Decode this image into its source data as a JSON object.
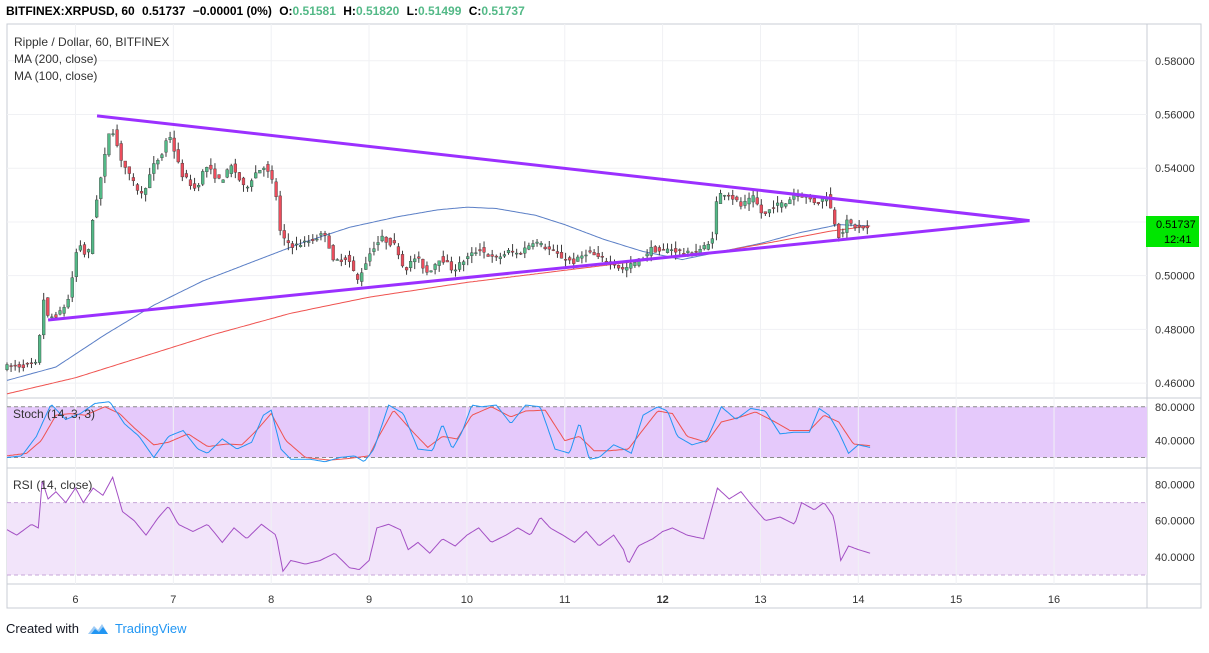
{
  "header": {
    "symbol": "BITFINEX:XRPUSD, 60",
    "last": "0.51737",
    "change": "−0.00001 (0%)",
    "o_label": "O:",
    "o_value": "0.51581",
    "h_label": "H:",
    "h_value": "0.51820",
    "l_label": "L:",
    "l_value": "0.51499",
    "c_label": "C:",
    "c_value": "0.51737"
  },
  "legend": {
    "title": "Ripple / Dollar, 60, BITFINEX",
    "ma200": "MA (200, close)",
    "ma100": "MA (100, close)"
  },
  "price_badge": {
    "value": "0.51737",
    "time": "12:41"
  },
  "footer": {
    "created_with": "Created with",
    "brand": "TradingView"
  },
  "colors": {
    "up": "#53b987",
    "down": "#eb4d5c",
    "ma100": "#5b7fc6",
    "ma200": "#ef5350",
    "trendline": "#9b30ff",
    "stoch_k": "#2196f3",
    "stoch_d": "#ef5350",
    "stoch_band": "#e5c9fb",
    "rsi_line": "#a34fc4",
    "rsi_band": "#f2e4fa",
    "badge_bg": "#00e600"
  },
  "chart_data": {
    "type": "candlestick",
    "title": "Ripple / Dollar, 60, BITFINEX",
    "x_ticks": [
      "6",
      "7",
      "8",
      "9",
      "10",
      "11",
      "12",
      "13",
      "14",
      "15",
      "16"
    ],
    "x_tick_days": [
      6,
      7,
      8,
      9,
      10,
      11,
      12,
      13,
      14,
      15,
      16
    ],
    "x_range_days": [
      5.3,
      16.95
    ],
    "price_axis": {
      "ticks": [
        "0.58000",
        "0.56000",
        "0.54000",
        "0.52000",
        "0.50000",
        "0.48000",
        "0.46000"
      ],
      "tick_values": [
        0.58,
        0.56,
        0.54,
        0.52,
        0.5,
        0.48,
        0.46
      ],
      "ylim": [
        0.4552,
        0.5937
      ]
    },
    "price_anchors": [
      [
        5.3,
        0.466
      ],
      [
        5.62,
        0.467
      ],
      [
        5.66,
        0.48
      ],
      [
        5.68,
        0.494
      ],
      [
        5.74,
        0.484
      ],
      [
        5.86,
        0.486
      ],
      [
        5.96,
        0.492
      ],
      [
        6.02,
        0.508
      ],
      [
        6.08,
        0.512
      ],
      [
        6.14,
        0.505
      ],
      [
        6.2,
        0.522
      ],
      [
        6.3,
        0.54
      ],
      [
        6.38,
        0.557
      ],
      [
        6.48,
        0.544
      ],
      [
        6.6,
        0.535
      ],
      [
        6.7,
        0.53
      ],
      [
        6.82,
        0.541
      ],
      [
        6.92,
        0.546
      ],
      [
        6.97,
        0.554
      ],
      [
        7.1,
        0.538
      ],
      [
        7.25,
        0.532
      ],
      [
        7.35,
        0.541
      ],
      [
        7.5,
        0.535
      ],
      [
        7.62,
        0.541
      ],
      [
        7.75,
        0.532
      ],
      [
        7.85,
        0.538
      ],
      [
        7.95,
        0.541
      ],
      [
        8.06,
        0.533
      ],
      [
        8.12,
        0.514
      ],
      [
        8.25,
        0.511
      ],
      [
        8.42,
        0.513
      ],
      [
        8.58,
        0.516
      ],
      [
        8.65,
        0.505
      ],
      [
        8.8,
        0.507
      ],
      [
        8.9,
        0.498
      ],
      [
        9.05,
        0.51
      ],
      [
        9.15,
        0.514
      ],
      [
        9.3,
        0.511
      ],
      [
        9.38,
        0.502
      ],
      [
        9.5,
        0.507
      ],
      [
        9.62,
        0.501
      ],
      [
        9.75,
        0.507
      ],
      [
        9.88,
        0.502
      ],
      [
        10.0,
        0.506
      ],
      [
        10.15,
        0.51
      ],
      [
        10.3,
        0.506
      ],
      [
        10.45,
        0.509
      ],
      [
        10.55,
        0.508
      ],
      [
        10.7,
        0.513
      ],
      [
        10.85,
        0.51
      ],
      [
        10.98,
        0.507
      ],
      [
        11.12,
        0.505
      ],
      [
        11.25,
        0.509
      ],
      [
        11.4,
        0.506
      ],
      [
        11.5,
        0.505
      ],
      [
        11.62,
        0.502
      ],
      [
        11.7,
        0.504
      ],
      [
        11.8,
        0.506
      ],
      [
        11.9,
        0.51
      ],
      [
        12.0,
        0.509
      ],
      [
        12.1,
        0.51
      ],
      [
        12.3,
        0.508
      ],
      [
        12.52,
        0.512
      ],
      [
        12.58,
        0.53
      ],
      [
        12.68,
        0.531
      ],
      [
        12.82,
        0.526
      ],
      [
        12.95,
        0.529
      ],
      [
        13.05,
        0.522
      ],
      [
        13.15,
        0.526
      ],
      [
        13.28,
        0.527
      ],
      [
        13.38,
        0.531
      ],
      [
        13.5,
        0.529
      ],
      [
        13.6,
        0.527
      ],
      [
        13.7,
        0.53
      ],
      [
        13.76,
        0.522
      ],
      [
        13.83,
        0.514
      ],
      [
        13.9,
        0.52
      ],
      [
        14.0,
        0.518
      ],
      [
        14.12,
        0.5174
      ]
    ],
    "ma100_anchors": [
      [
        5.3,
        0.461
      ],
      [
        5.8,
        0.466
      ],
      [
        6.3,
        0.478
      ],
      [
        6.8,
        0.489
      ],
      [
        7.3,
        0.498
      ],
      [
        7.8,
        0.505
      ],
      [
        8.3,
        0.512
      ],
      [
        8.8,
        0.518
      ],
      [
        9.3,
        0.522
      ],
      [
        9.7,
        0.5245
      ],
      [
        10.0,
        0.5255
      ],
      [
        10.3,
        0.525
      ],
      [
        10.7,
        0.5225
      ],
      [
        11.0,
        0.519
      ],
      [
        11.4,
        0.5135
      ],
      [
        11.8,
        0.509
      ],
      [
        12.2,
        0.506
      ],
      [
        12.6,
        0.509
      ],
      [
        13.0,
        0.512
      ],
      [
        13.4,
        0.516
      ],
      [
        13.8,
        0.519
      ],
      [
        14.12,
        0.5185
      ]
    ],
    "ma200_anchors": [
      [
        5.3,
        0.456
      ],
      [
        6.0,
        0.462
      ],
      [
        6.7,
        0.47
      ],
      [
        7.4,
        0.478
      ],
      [
        8.2,
        0.486
      ],
      [
        9.0,
        0.492
      ],
      [
        10.0,
        0.4975
      ],
      [
        11.0,
        0.502
      ],
      [
        12.0,
        0.5065
      ],
      [
        12.6,
        0.509
      ],
      [
        13.2,
        0.513
      ],
      [
        13.7,
        0.5165
      ],
      [
        14.12,
        0.5185
      ]
    ],
    "trendlines": [
      {
        "name": "upper",
        "points": [
          [
            6.22,
            0.5595
          ],
          [
            15.75,
            0.5205
          ]
        ]
      },
      {
        "name": "lower",
        "points": [
          [
            5.72,
            0.4835
          ],
          [
            15.75,
            0.5205
          ]
        ]
      }
    ],
    "stochastic": {
      "label": "Stoch (14, 3, 3)",
      "ticks": [
        "80.0000",
        "40.0000"
      ],
      "tick_values": [
        80,
        40
      ],
      "bands": [
        20,
        80
      ],
      "ylim": [
        10,
        88
      ],
      "k_anchors": [
        [
          5.3,
          20
        ],
        [
          5.45,
          22
        ],
        [
          5.6,
          45
        ],
        [
          5.75,
          83
        ],
        [
          5.9,
          65
        ],
        [
          6.05,
          72
        ],
        [
          6.2,
          84
        ],
        [
          6.35,
          86
        ],
        [
          6.5,
          60
        ],
        [
          6.65,
          45
        ],
        [
          6.8,
          20
        ],
        [
          6.95,
          45
        ],
        [
          7.1,
          52
        ],
        [
          7.25,
          30
        ],
        [
          7.35,
          25
        ],
        [
          7.5,
          42
        ],
        [
          7.65,
          30
        ],
        [
          7.8,
          38
        ],
        [
          7.92,
          70
        ],
        [
          8.0,
          76
        ],
        [
          8.1,
          30
        ],
        [
          8.2,
          18
        ],
        [
          8.4,
          18
        ],
        [
          8.55,
          15
        ],
        [
          8.7,
          20
        ],
        [
          8.85,
          22
        ],
        [
          8.95,
          15
        ],
        [
          9.05,
          30
        ],
        [
          9.2,
          82
        ],
        [
          9.35,
          72
        ],
        [
          9.5,
          30
        ],
        [
          9.65,
          28
        ],
        [
          9.75,
          60
        ],
        [
          9.85,
          30
        ],
        [
          9.95,
          50
        ],
        [
          10.05,
          82
        ],
        [
          10.15,
          80
        ],
        [
          10.3,
          82
        ],
        [
          10.45,
          60
        ],
        [
          10.6,
          82
        ],
        [
          10.75,
          80
        ],
        [
          10.9,
          30
        ],
        [
          11.05,
          25
        ],
        [
          11.15,
          62
        ],
        [
          11.25,
          18
        ],
        [
          11.35,
          20
        ],
        [
          11.5,
          35
        ],
        [
          11.6,
          30
        ],
        [
          11.68,
          25
        ],
        [
          11.8,
          70
        ],
        [
          11.95,
          80
        ],
        [
          12.05,
          75
        ],
        [
          12.15,
          45
        ],
        [
          12.3,
          35
        ],
        [
          12.45,
          40
        ],
        [
          12.6,
          80
        ],
        [
          12.75,
          65
        ],
        [
          12.9,
          78
        ],
        [
          13.05,
          75
        ],
        [
          13.2,
          48
        ],
        [
          13.35,
          50
        ],
        [
          13.5,
          50
        ],
        [
          13.6,
          78
        ],
        [
          13.7,
          70
        ],
        [
          13.8,
          50
        ],
        [
          13.9,
          25
        ],
        [
          14.0,
          35
        ],
        [
          14.12,
          32
        ]
      ],
      "d_anchors": [
        [
          5.3,
          22
        ],
        [
          5.5,
          25
        ],
        [
          5.65,
          40
        ],
        [
          5.8,
          70
        ],
        [
          5.95,
          72
        ],
        [
          6.1,
          70
        ],
        [
          6.3,
          80
        ],
        [
          6.45,
          72
        ],
        [
          6.6,
          55
        ],
        [
          6.8,
          35
        ],
        [
          6.95,
          38
        ],
        [
          7.15,
          48
        ],
        [
          7.35,
          33
        ],
        [
          7.55,
          36
        ],
        [
          7.7,
          35
        ],
        [
          7.85,
          52
        ],
        [
          8.0,
          72
        ],
        [
          8.15,
          40
        ],
        [
          8.35,
          20
        ],
        [
          8.6,
          17
        ],
        [
          8.8,
          19
        ],
        [
          9.0,
          22
        ],
        [
          9.1,
          45
        ],
        [
          9.25,
          76
        ],
        [
          9.45,
          50
        ],
        [
          9.6,
          32
        ],
        [
          9.75,
          45
        ],
        [
          9.9,
          42
        ],
        [
          10.05,
          70
        ],
        [
          10.25,
          80
        ],
        [
          10.45,
          68
        ],
        [
          10.6,
          75
        ],
        [
          10.8,
          76
        ],
        [
          11.0,
          40
        ],
        [
          11.15,
          45
        ],
        [
          11.3,
          28
        ],
        [
          11.45,
          28
        ],
        [
          11.65,
          30
        ],
        [
          11.78,
          50
        ],
        [
          11.95,
          75
        ],
        [
          12.1,
          72
        ],
        [
          12.25,
          45
        ],
        [
          12.45,
          38
        ],
        [
          12.6,
          62
        ],
        [
          12.8,
          68
        ],
        [
          12.95,
          74
        ],
        [
          13.15,
          62
        ],
        [
          13.3,
          52
        ],
        [
          13.5,
          52
        ],
        [
          13.65,
          70
        ],
        [
          13.8,
          62
        ],
        [
          13.95,
          36
        ],
        [
          14.12,
          34
        ]
      ]
    },
    "rsi": {
      "label": "RSI (14, close)",
      "ticks": [
        "80.0000",
        "60.0000",
        "40.0000"
      ],
      "tick_values": [
        80,
        60,
        40
      ],
      "bands": [
        30,
        70
      ],
      "ylim": [
        25,
        88
      ],
      "anchors": [
        [
          5.3,
          55
        ],
        [
          5.4,
          52
        ],
        [
          5.55,
          58
        ],
        [
          5.62,
          56
        ],
        [
          5.66,
          82
        ],
        [
          5.72,
          72
        ],
        [
          5.8,
          76
        ],
        [
          5.9,
          70
        ],
        [
          6.0,
          78
        ],
        [
          6.08,
          70
        ],
        [
          6.18,
          78
        ],
        [
          6.28,
          74
        ],
        [
          6.38,
          84
        ],
        [
          6.48,
          65
        ],
        [
          6.6,
          60
        ],
        [
          6.72,
          52
        ],
        [
          6.85,
          62
        ],
        [
          6.95,
          68
        ],
        [
          7.05,
          58
        ],
        [
          7.2,
          54
        ],
        [
          7.35,
          58
        ],
        [
          7.5,
          48
        ],
        [
          7.62,
          56
        ],
        [
          7.75,
          50
        ],
        [
          7.9,
          58
        ],
        [
          8.05,
          52
        ],
        [
          8.12,
          32
        ],
        [
          8.2,
          38
        ],
        [
          8.35,
          36
        ],
        [
          8.5,
          38
        ],
        [
          8.65,
          42
        ],
        [
          8.8,
          34
        ],
        [
          8.9,
          33
        ],
        [
          9.0,
          38
        ],
        [
          9.08,
          56
        ],
        [
          9.2,
          58
        ],
        [
          9.32,
          55
        ],
        [
          9.4,
          44
        ],
        [
          9.5,
          48
        ],
        [
          9.62,
          42
        ],
        [
          9.75,
          50
        ],
        [
          9.88,
          46
        ],
        [
          10.0,
          52
        ],
        [
          10.12,
          56
        ],
        [
          10.25,
          48
        ],
        [
          10.4,
          52
        ],
        [
          10.52,
          56
        ],
        [
          10.65,
          52
        ],
        [
          10.75,
          62
        ],
        [
          10.85,
          56
        ],
        [
          10.98,
          52
        ],
        [
          11.1,
          48
        ],
        [
          11.22,
          54
        ],
        [
          11.35,
          46
        ],
        [
          11.5,
          52
        ],
        [
          11.6,
          44
        ],
        [
          11.65,
          36
        ],
        [
          11.75,
          46
        ],
        [
          11.9,
          50
        ],
        [
          12.0,
          54
        ],
        [
          12.1,
          56
        ],
        [
          12.25,
          52
        ],
        [
          12.42,
          50
        ],
        [
          12.56,
          78
        ],
        [
          12.68,
          72
        ],
        [
          12.8,
          76
        ],
        [
          12.92,
          68
        ],
        [
          13.05,
          60
        ],
        [
          13.2,
          62
        ],
        [
          13.35,
          58
        ],
        [
          13.42,
          70
        ],
        [
          13.55,
          66
        ],
        [
          13.65,
          70
        ],
        [
          13.75,
          62
        ],
        [
          13.82,
          38
        ],
        [
          13.9,
          46
        ],
        [
          14.0,
          44
        ],
        [
          14.12,
          42
        ]
      ]
    }
  }
}
